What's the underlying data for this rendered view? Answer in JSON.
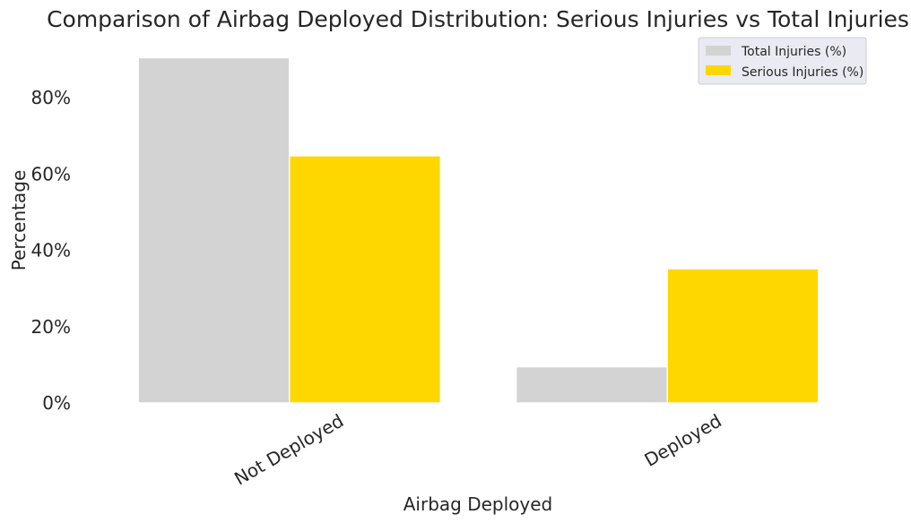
{
  "chart_data": {
    "type": "bar",
    "title": "Comparison of Airbag Deployed Distribution: Serious Injuries vs Total Injuries",
    "xlabel": "Airbag Deployed",
    "ylabel": "Percentage",
    "categories": [
      "Not Deployed",
      "Deployed"
    ],
    "series": [
      {
        "name": "Total Injuries (%)",
        "values": [
          90.5,
          9.5
        ],
        "color": "#d3d3d3"
      },
      {
        "name": "Serious Injuries (%)",
        "values": [
          64.8,
          35.2
        ],
        "color": "#ffd700"
      }
    ],
    "ylim": [
      0,
      92
    ],
    "yticks": [
      0,
      20,
      40,
      60,
      80
    ],
    "ytick_labels": [
      "0%",
      "20%",
      "40%",
      "60%",
      "80%"
    ],
    "grid": false,
    "legend_position": "top-right"
  }
}
